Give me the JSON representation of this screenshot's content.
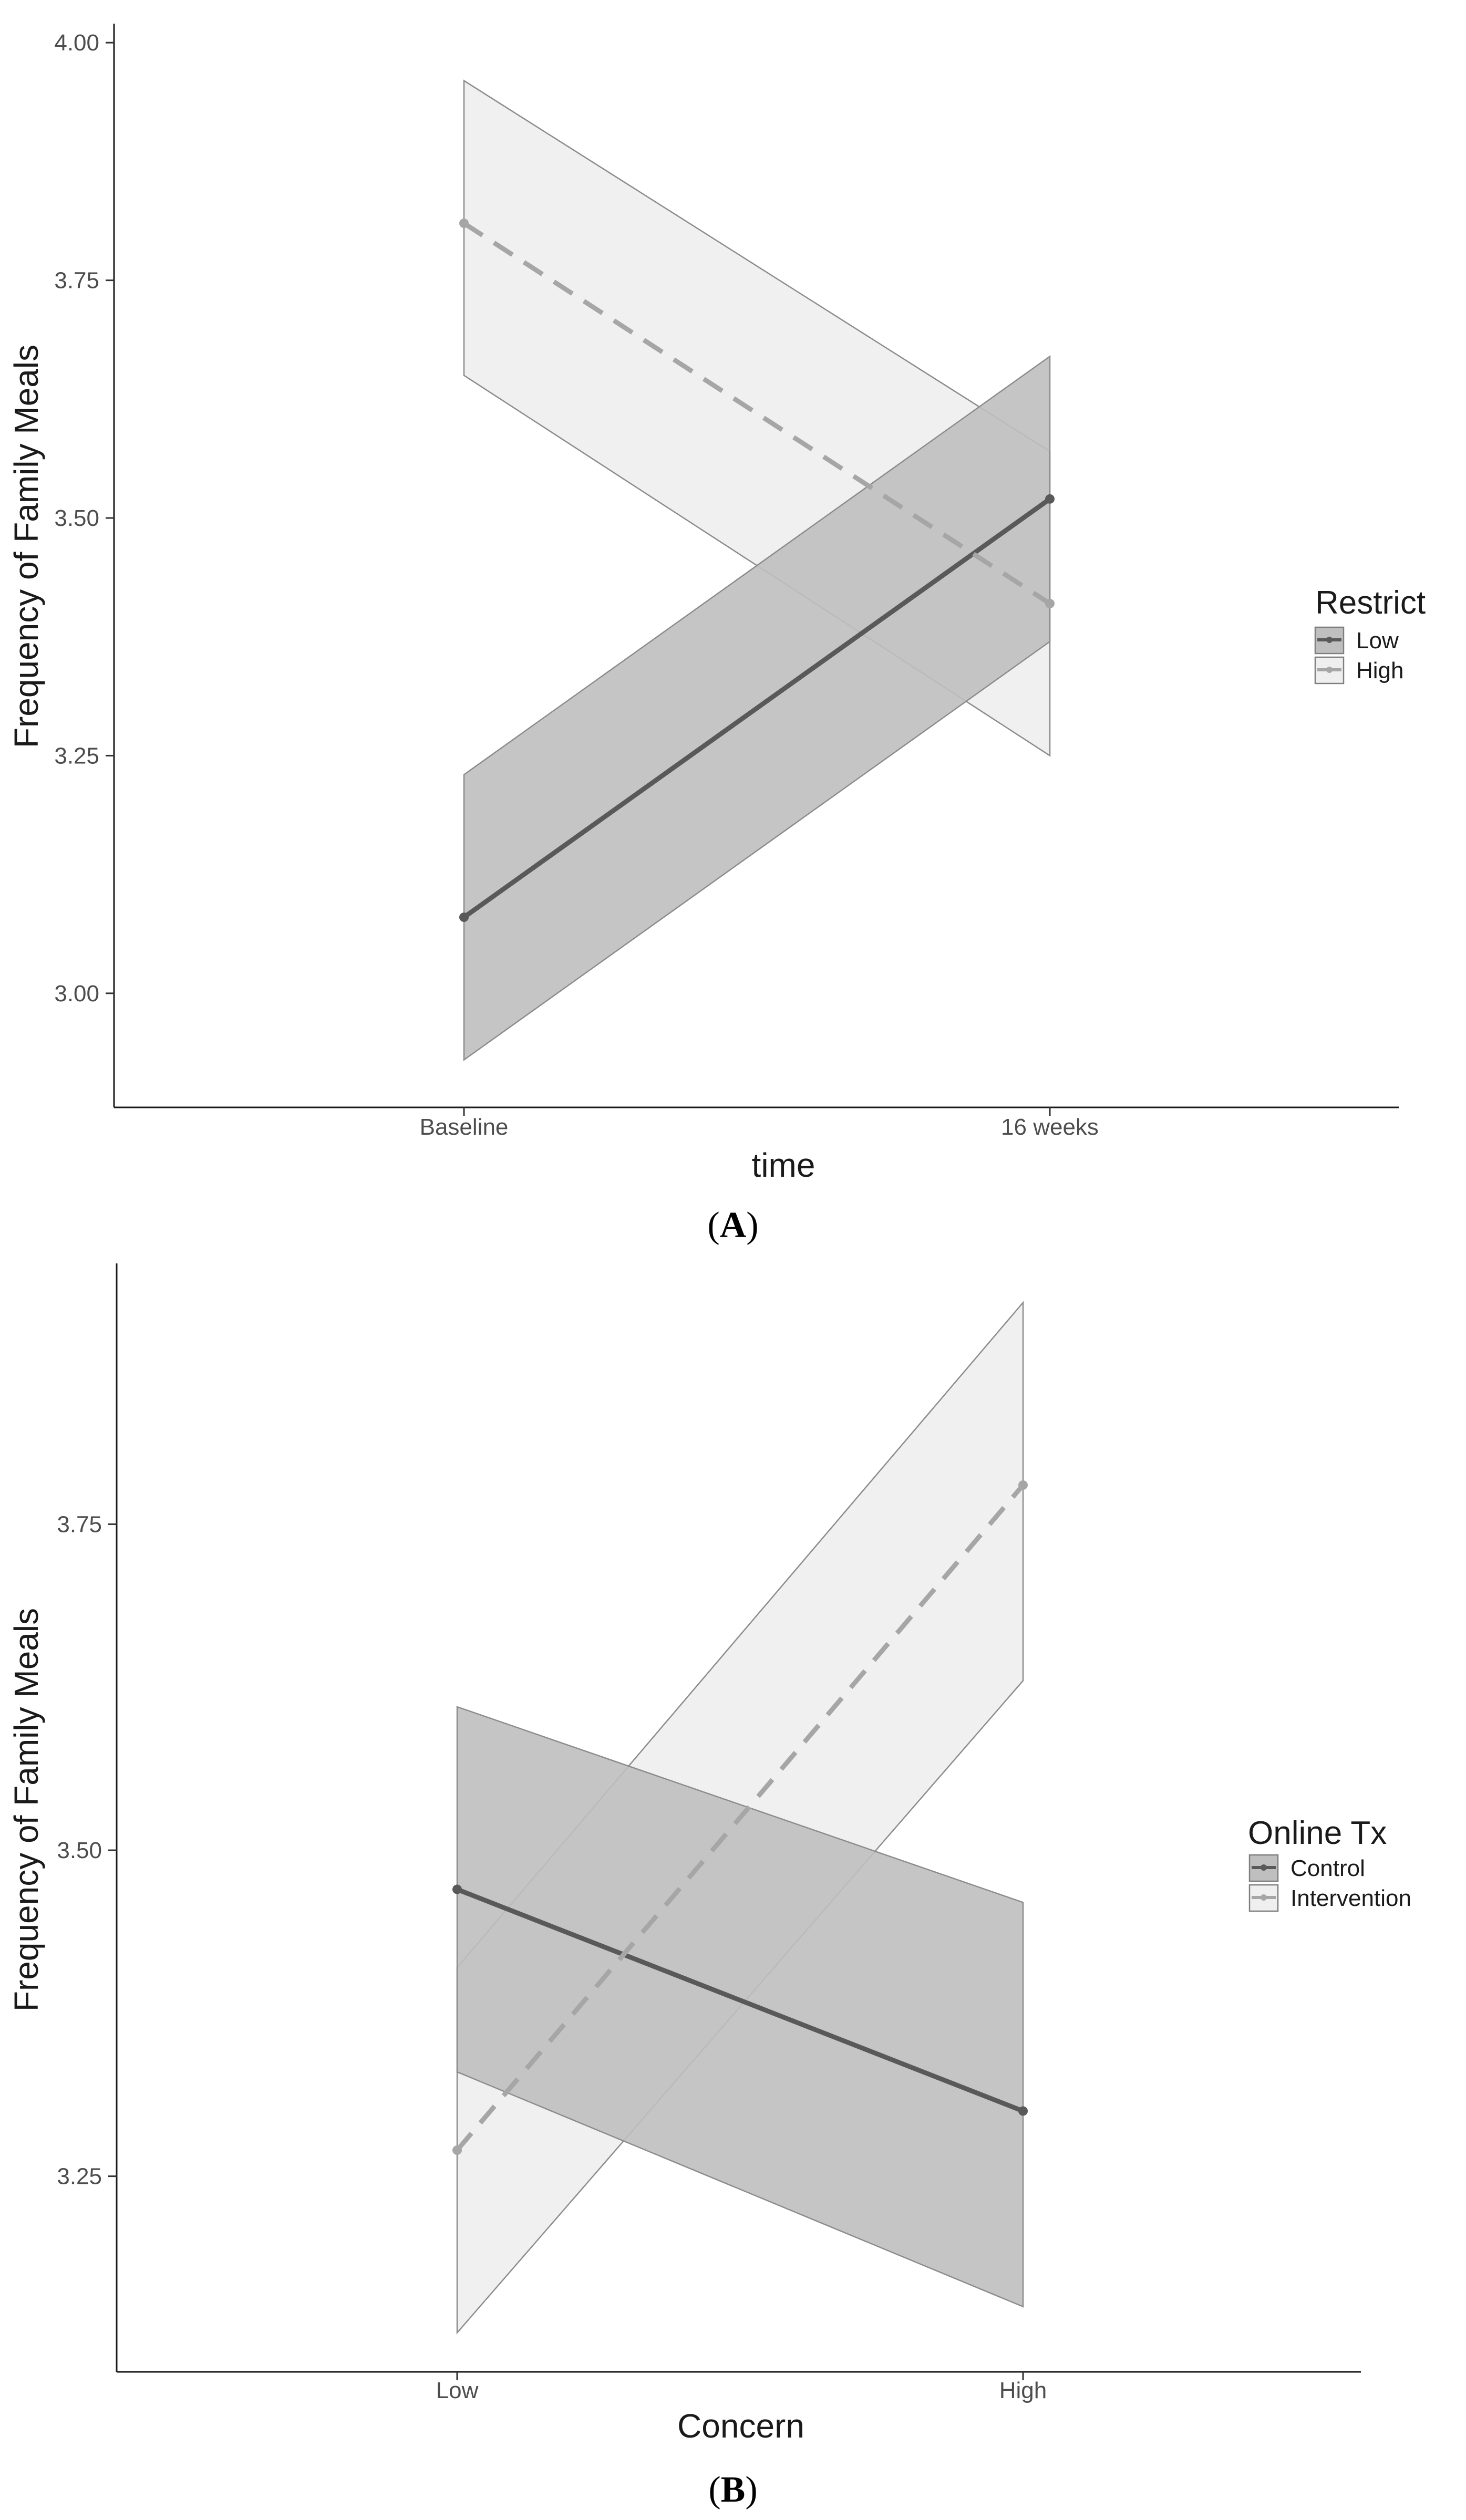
{
  "colors": {
    "background": "#ffffff",
    "axis": "#1a1a1a",
    "tick_text": "#4d4d4d",
    "series_dark_line": "#595959",
    "series_light_line": "#a6a6a6",
    "ribbon_dark": "#bfbfbf",
    "ribbon_light": "#efefef",
    "ribbon_edge": "#8c8c8c"
  },
  "chart_data": [
    {
      "type": "line",
      "panel_label": "A",
      "title": "",
      "xlabel": "time",
      "ylabel": "Frequency of Family Meals",
      "categories": [
        "Baseline",
        "16 weeks"
      ],
      "ylim": [
        2.88,
        4.02
      ],
      "yticks": [
        3.0,
        3.25,
        3.5,
        3.75,
        4.0
      ],
      "ytick_labels": [
        "3.00",
        "3.25",
        "3.50",
        "3.75",
        "4.00"
      ],
      "legend_title": "Restrict",
      "legend_position": "right",
      "series": [
        {
          "name": "Low",
          "style": "solid",
          "color": "#595959",
          "ribbon_color": "#bfbfbf",
          "values": [
            3.08,
            3.52
          ],
          "lower": [
            2.93,
            3.37
          ],
          "upper": [
            3.23,
            3.67
          ]
        },
        {
          "name": "High",
          "style": "dashed",
          "color": "#a6a6a6",
          "ribbon_color": "#efefef",
          "values": [
            3.81,
            3.41
          ],
          "lower": [
            3.65,
            3.25
          ],
          "upper": [
            3.96,
            3.57
          ]
        }
      ]
    },
    {
      "type": "line",
      "panel_label": "B",
      "title": "",
      "xlabel": "Concern",
      "ylabel": "Frequency of Family Meals",
      "categories": [
        "Low",
        "High"
      ],
      "ylim": [
        3.1,
        3.95
      ],
      "yticks": [
        3.25,
        3.5,
        3.75
      ],
      "ytick_labels": [
        "3.25",
        "3.50",
        "3.75"
      ],
      "legend_title": "Online Tx",
      "legend_position": "right",
      "series": [
        {
          "name": "Control",
          "style": "solid",
          "color": "#595959",
          "ribbon_color": "#bfbfbf",
          "values": [
            3.47,
            3.3
          ],
          "lower": [
            3.33,
            3.15
          ],
          "upper": [
            3.61,
            3.46
          ]
        },
        {
          "name": "Intervention",
          "style": "dashed",
          "color": "#a6a6a6",
          "ribbon_color": "#efefef",
          "values": [
            3.27,
            3.78
          ],
          "lower": [
            3.13,
            3.63
          ],
          "upper": [
            3.41,
            3.92
          ]
        }
      ]
    }
  ]
}
